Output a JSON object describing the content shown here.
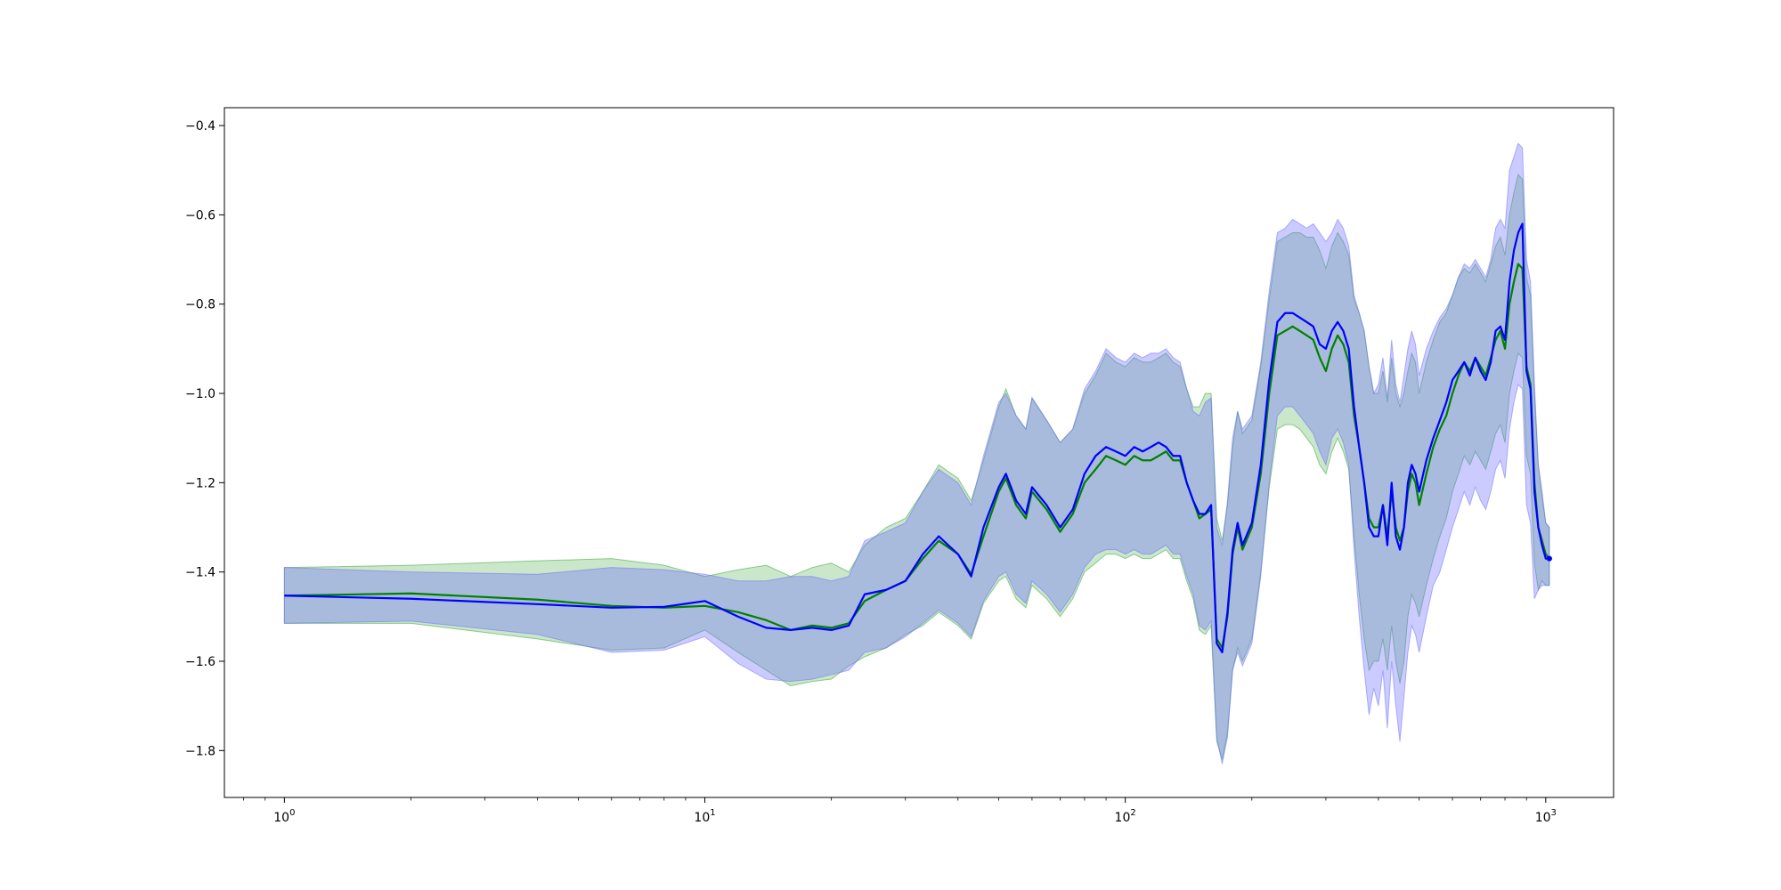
{
  "chart_data": {
    "type": "line",
    "title": "",
    "xlabel": "",
    "ylabel": "",
    "xscale": "log",
    "xlim": [
      0.72,
      1450
    ],
    "ylim": [
      -1.905,
      -0.36
    ],
    "grid": false,
    "legend": "none",
    "x_ticks": [
      {
        "value": 1,
        "base": "10",
        "exp": "0"
      },
      {
        "value": 10,
        "base": "10",
        "exp": "1"
      },
      {
        "value": 100,
        "base": "10",
        "exp": "2"
      },
      {
        "value": 1000,
        "base": "10",
        "exp": "3"
      }
    ],
    "y_ticks": [
      {
        "value": -0.4,
        "label": "−0.4"
      },
      {
        "value": -0.6,
        "label": "−0.6"
      },
      {
        "value": -0.8,
        "label": "−0.8"
      },
      {
        "value": -1.0,
        "label": "−1.0"
      },
      {
        "value": -1.2,
        "label": "−1.2"
      },
      {
        "value": -1.4,
        "label": "−1.4"
      },
      {
        "value": -1.6,
        "label": "−1.6"
      },
      {
        "value": -1.8,
        "label": "−1.8"
      }
    ],
    "series": [
      {
        "color": "#008000",
        "band_color": "#2ca02c",
        "band_opacity": 0.25,
        "x": [
          1,
          2,
          4,
          6,
          8,
          10,
          12,
          14,
          16,
          18,
          20,
          22,
          24,
          27,
          30,
          33,
          36,
          40,
          43,
          46,
          50,
          52,
          55,
          58,
          60,
          65,
          70,
          75,
          80,
          85,
          90,
          95,
          100,
          105,
          110,
          115,
          120,
          125,
          130,
          135,
          140,
          145,
          150,
          155,
          160,
          165,
          170,
          175,
          180,
          185,
          190,
          200,
          210,
          220,
          230,
          240,
          250,
          260,
          270,
          280,
          290,
          300,
          310,
          320,
          330,
          340,
          350,
          360,
          370,
          380,
          390,
          400,
          410,
          420,
          430,
          440,
          450,
          460,
          470,
          480,
          490,
          500,
          520,
          540,
          560,
          580,
          600,
          620,
          640,
          660,
          680,
          700,
          720,
          740,
          760,
          780,
          800,
          820,
          840,
          860,
          880,
          900,
          920,
          940,
          960,
          980,
          1000,
          1020
        ],
        "y": [
          -1.453,
          -1.448,
          -1.462,
          -1.476,
          -1.48,
          -1.476,
          -1.49,
          -1.508,
          -1.53,
          -1.52,
          -1.525,
          -1.515,
          -1.465,
          -1.44,
          -1.42,
          -1.37,
          -1.33,
          -1.36,
          -1.405,
          -1.32,
          -1.22,
          -1.19,
          -1.25,
          -1.28,
          -1.22,
          -1.26,
          -1.31,
          -1.27,
          -1.2,
          -1.17,
          -1.14,
          -1.15,
          -1.16,
          -1.14,
          -1.15,
          -1.15,
          -1.14,
          -1.13,
          -1.15,
          -1.15,
          -1.2,
          -1.24,
          -1.28,
          -1.27,
          -1.26,
          -1.55,
          -1.57,
          -1.5,
          -1.36,
          -1.3,
          -1.35,
          -1.3,
          -1.18,
          -1.0,
          -0.87,
          -0.86,
          -0.85,
          -0.86,
          -0.87,
          -0.88,
          -0.92,
          -0.95,
          -0.9,
          -0.87,
          -0.89,
          -0.93,
          -1.05,
          -1.12,
          -1.2,
          -1.28,
          -1.3,
          -1.3,
          -1.25,
          -1.32,
          -1.22,
          -1.3,
          -1.33,
          -1.3,
          -1.22,
          -1.18,
          -1.2,
          -1.25,
          -1.18,
          -1.12,
          -1.08,
          -1.05,
          -1.0,
          -0.96,
          -0.93,
          -0.95,
          -0.92,
          -0.94,
          -0.96,
          -0.92,
          -0.88,
          -0.86,
          -0.9,
          -0.8,
          -0.75,
          -0.71,
          -0.72,
          -0.94,
          -0.98,
          -1.2,
          -1.3,
          -1.33,
          -1.36,
          -1.37
        ],
        "y_low": [
          -1.515,
          -1.515,
          -1.55,
          -1.575,
          -1.57,
          -1.53,
          -1.58,
          -1.62,
          -1.655,
          -1.645,
          -1.64,
          -1.61,
          -1.59,
          -1.57,
          -1.54,
          -1.52,
          -1.49,
          -1.52,
          -1.55,
          -1.47,
          -1.42,
          -1.41,
          -1.46,
          -1.48,
          -1.43,
          -1.46,
          -1.5,
          -1.46,
          -1.4,
          -1.38,
          -1.36,
          -1.36,
          -1.37,
          -1.36,
          -1.37,
          -1.37,
          -1.36,
          -1.35,
          -1.37,
          -1.37,
          -1.42,
          -1.46,
          -1.53,
          -1.54,
          -1.52,
          -1.78,
          -1.82,
          -1.76,
          -1.62,
          -1.57,
          -1.6,
          -1.55,
          -1.4,
          -1.21,
          -1.08,
          -1.07,
          -1.07,
          -1.08,
          -1.1,
          -1.12,
          -1.16,
          -1.18,
          -1.13,
          -1.1,
          -1.13,
          -1.17,
          -1.32,
          -1.45,
          -1.55,
          -1.62,
          -1.6,
          -1.6,
          -1.55,
          -1.62,
          -1.52,
          -1.6,
          -1.65,
          -1.6,
          -1.5,
          -1.45,
          -1.47,
          -1.5,
          -1.43,
          -1.37,
          -1.32,
          -1.28,
          -1.22,
          -1.18,
          -1.14,
          -1.16,
          -1.13,
          -1.15,
          -1.17,
          -1.13,
          -1.09,
          -1.07,
          -1.11,
          -1.0,
          -0.95,
          -0.91,
          -0.92,
          -1.14,
          -1.18,
          -1.38,
          -1.44,
          -1.42,
          -1.43,
          -1.43
        ],
        "y_high": [
          -1.39,
          -1.385,
          -1.375,
          -1.37,
          -1.385,
          -1.41,
          -1.395,
          -1.385,
          -1.41,
          -1.39,
          -1.38,
          -1.4,
          -1.34,
          -1.3,
          -1.28,
          -1.22,
          -1.16,
          -1.19,
          -1.24,
          -1.15,
          -1.03,
          -0.99,
          -1.05,
          -1.08,
          -1.01,
          -1.06,
          -1.11,
          -1.08,
          -1.0,
          -0.96,
          -0.91,
          -0.93,
          -0.94,
          -0.92,
          -0.93,
          -0.93,
          -0.92,
          -0.91,
          -0.93,
          -0.94,
          -0.99,
          -1.03,
          -1.03,
          -1.0,
          -1.0,
          -1.28,
          -1.33,
          -1.25,
          -1.12,
          -1.04,
          -1.09,
          -1.06,
          -0.94,
          -0.79,
          -0.66,
          -0.65,
          -0.64,
          -0.64,
          -0.65,
          -0.65,
          -0.68,
          -0.72,
          -0.67,
          -0.64,
          -0.66,
          -0.69,
          -0.79,
          -0.82,
          -0.86,
          -0.94,
          -1.0,
          -1.0,
          -0.95,
          -1.02,
          -0.92,
          -1.0,
          -1.03,
          -1.0,
          -0.95,
          -0.91,
          -0.93,
          -1.0,
          -0.93,
          -0.88,
          -0.84,
          -0.82,
          -0.78,
          -0.74,
          -0.72,
          -0.73,
          -0.71,
          -0.73,
          -0.75,
          -0.71,
          -0.67,
          -0.65,
          -0.69,
          -0.6,
          -0.55,
          -0.51,
          -0.52,
          -0.74,
          -0.78,
          -1.0,
          -1.16,
          -1.23,
          -1.29,
          -1.3
        ]
      },
      {
        "color": "#0000ff",
        "band_color": "#6a6aff",
        "band_opacity": 0.35,
        "x": [
          1,
          2,
          4,
          6,
          8,
          10,
          12,
          14,
          16,
          18,
          20,
          22,
          24,
          27,
          30,
          33,
          36,
          40,
          43,
          46,
          50,
          52,
          55,
          58,
          60,
          65,
          70,
          75,
          80,
          85,
          90,
          95,
          100,
          105,
          110,
          115,
          120,
          125,
          130,
          135,
          140,
          145,
          150,
          155,
          160,
          165,
          170,
          175,
          180,
          185,
          190,
          200,
          210,
          220,
          230,
          240,
          250,
          260,
          270,
          280,
          290,
          300,
          310,
          320,
          330,
          340,
          350,
          360,
          370,
          380,
          390,
          400,
          410,
          420,
          430,
          440,
          450,
          460,
          470,
          480,
          490,
          500,
          520,
          540,
          560,
          580,
          600,
          620,
          640,
          660,
          680,
          700,
          720,
          740,
          760,
          780,
          800,
          820,
          840,
          860,
          880,
          900,
          920,
          940,
          960,
          980,
          1000,
          1020
        ],
        "y": [
          -1.453,
          -1.46,
          -1.472,
          -1.48,
          -1.478,
          -1.465,
          -1.5,
          -1.525,
          -1.53,
          -1.525,
          -1.53,
          -1.52,
          -1.45,
          -1.44,
          -1.42,
          -1.36,
          -1.32,
          -1.36,
          -1.41,
          -1.3,
          -1.21,
          -1.18,
          -1.24,
          -1.27,
          -1.21,
          -1.25,
          -1.3,
          -1.26,
          -1.18,
          -1.14,
          -1.12,
          -1.13,
          -1.14,
          -1.12,
          -1.13,
          -1.12,
          -1.11,
          -1.12,
          -1.14,
          -1.14,
          -1.2,
          -1.24,
          -1.27,
          -1.27,
          -1.25,
          -1.56,
          -1.58,
          -1.49,
          -1.35,
          -1.29,
          -1.34,
          -1.29,
          -1.16,
          -0.97,
          -0.84,
          -0.82,
          -0.82,
          -0.83,
          -0.84,
          -0.85,
          -0.89,
          -0.9,
          -0.86,
          -0.84,
          -0.86,
          -0.9,
          -1.03,
          -1.12,
          -1.2,
          -1.3,
          -1.32,
          -1.32,
          -1.25,
          -1.34,
          -1.2,
          -1.32,
          -1.35,
          -1.3,
          -1.2,
          -1.16,
          -1.18,
          -1.22,
          -1.15,
          -1.1,
          -1.06,
          -1.02,
          -0.97,
          -0.95,
          -0.93,
          -0.96,
          -0.92,
          -0.95,
          -0.97,
          -0.93,
          -0.86,
          -0.85,
          -0.88,
          -0.75,
          -0.68,
          -0.64,
          -0.62,
          -0.95,
          -0.99,
          -1.22,
          -1.3,
          -1.34,
          -1.37,
          -1.37
        ],
        "y_low": [
          -1.515,
          -1.51,
          -1.54,
          -1.58,
          -1.575,
          -1.545,
          -1.605,
          -1.64,
          -1.645,
          -1.64,
          -1.63,
          -1.62,
          -1.58,
          -1.57,
          -1.545,
          -1.515,
          -1.485,
          -1.515,
          -1.545,
          -1.465,
          -1.41,
          -1.4,
          -1.45,
          -1.47,
          -1.42,
          -1.45,
          -1.49,
          -1.45,
          -1.39,
          -1.36,
          -1.35,
          -1.35,
          -1.36,
          -1.35,
          -1.36,
          -1.36,
          -1.35,
          -1.34,
          -1.36,
          -1.36,
          -1.41,
          -1.45,
          -1.52,
          -1.53,
          -1.51,
          -1.77,
          -1.83,
          -1.77,
          -1.62,
          -1.58,
          -1.61,
          -1.56,
          -1.41,
          -1.2,
          -1.05,
          -1.03,
          -1.03,
          -1.05,
          -1.07,
          -1.09,
          -1.13,
          -1.16,
          -1.1,
          -1.08,
          -1.11,
          -1.16,
          -1.35,
          -1.5,
          -1.62,
          -1.72,
          -1.66,
          -1.7,
          -1.62,
          -1.75,
          -1.6,
          -1.7,
          -1.78,
          -1.68,
          -1.58,
          -1.52,
          -1.54,
          -1.58,
          -1.5,
          -1.43,
          -1.4,
          -1.35,
          -1.3,
          -1.26,
          -1.22,
          -1.25,
          -1.21,
          -1.24,
          -1.26,
          -1.22,
          -1.17,
          -1.15,
          -1.19,
          -1.08,
          -1.02,
          -0.98,
          -0.99,
          -1.25,
          -1.29,
          -1.46,
          -1.44,
          -1.43,
          -1.43,
          -1.43
        ],
        "y_high": [
          -1.39,
          -1.4,
          -1.405,
          -1.39,
          -1.395,
          -1.405,
          -1.42,
          -1.42,
          -1.41,
          -1.41,
          -1.42,
          -1.41,
          -1.33,
          -1.31,
          -1.29,
          -1.22,
          -1.17,
          -1.2,
          -1.25,
          -1.14,
          -1.02,
          -1.0,
          -1.05,
          -1.08,
          -1.01,
          -1.06,
          -1.11,
          -1.08,
          -0.99,
          -0.95,
          -0.9,
          -0.92,
          -0.93,
          -0.91,
          -0.92,
          -0.91,
          -0.91,
          -0.9,
          -0.92,
          -0.93,
          -0.99,
          -1.04,
          -1.05,
          -1.02,
          -1.01,
          -1.3,
          -1.34,
          -1.24,
          -1.1,
          -1.04,
          -1.08,
          -1.05,
          -0.93,
          -0.77,
          -0.64,
          -0.63,
          -0.61,
          -0.62,
          -0.63,
          -0.62,
          -0.64,
          -0.66,
          -0.64,
          -0.61,
          -0.63,
          -0.67,
          -0.78,
          -0.82,
          -0.86,
          -0.94,
          -1.0,
          -0.98,
          -0.92,
          -1.01,
          -0.88,
          -0.98,
          -1.02,
          -0.96,
          -0.9,
          -0.86,
          -0.89,
          -0.96,
          -0.9,
          -0.86,
          -0.83,
          -0.81,
          -0.78,
          -0.74,
          -0.71,
          -0.72,
          -0.7,
          -0.72,
          -0.74,
          -0.7,
          -0.63,
          -0.61,
          -0.63,
          -0.5,
          -0.47,
          -0.44,
          -0.45,
          -0.7,
          -0.75,
          -0.98,
          -1.16,
          -1.22,
          -1.29,
          -1.3
        ]
      }
    ]
  }
}
